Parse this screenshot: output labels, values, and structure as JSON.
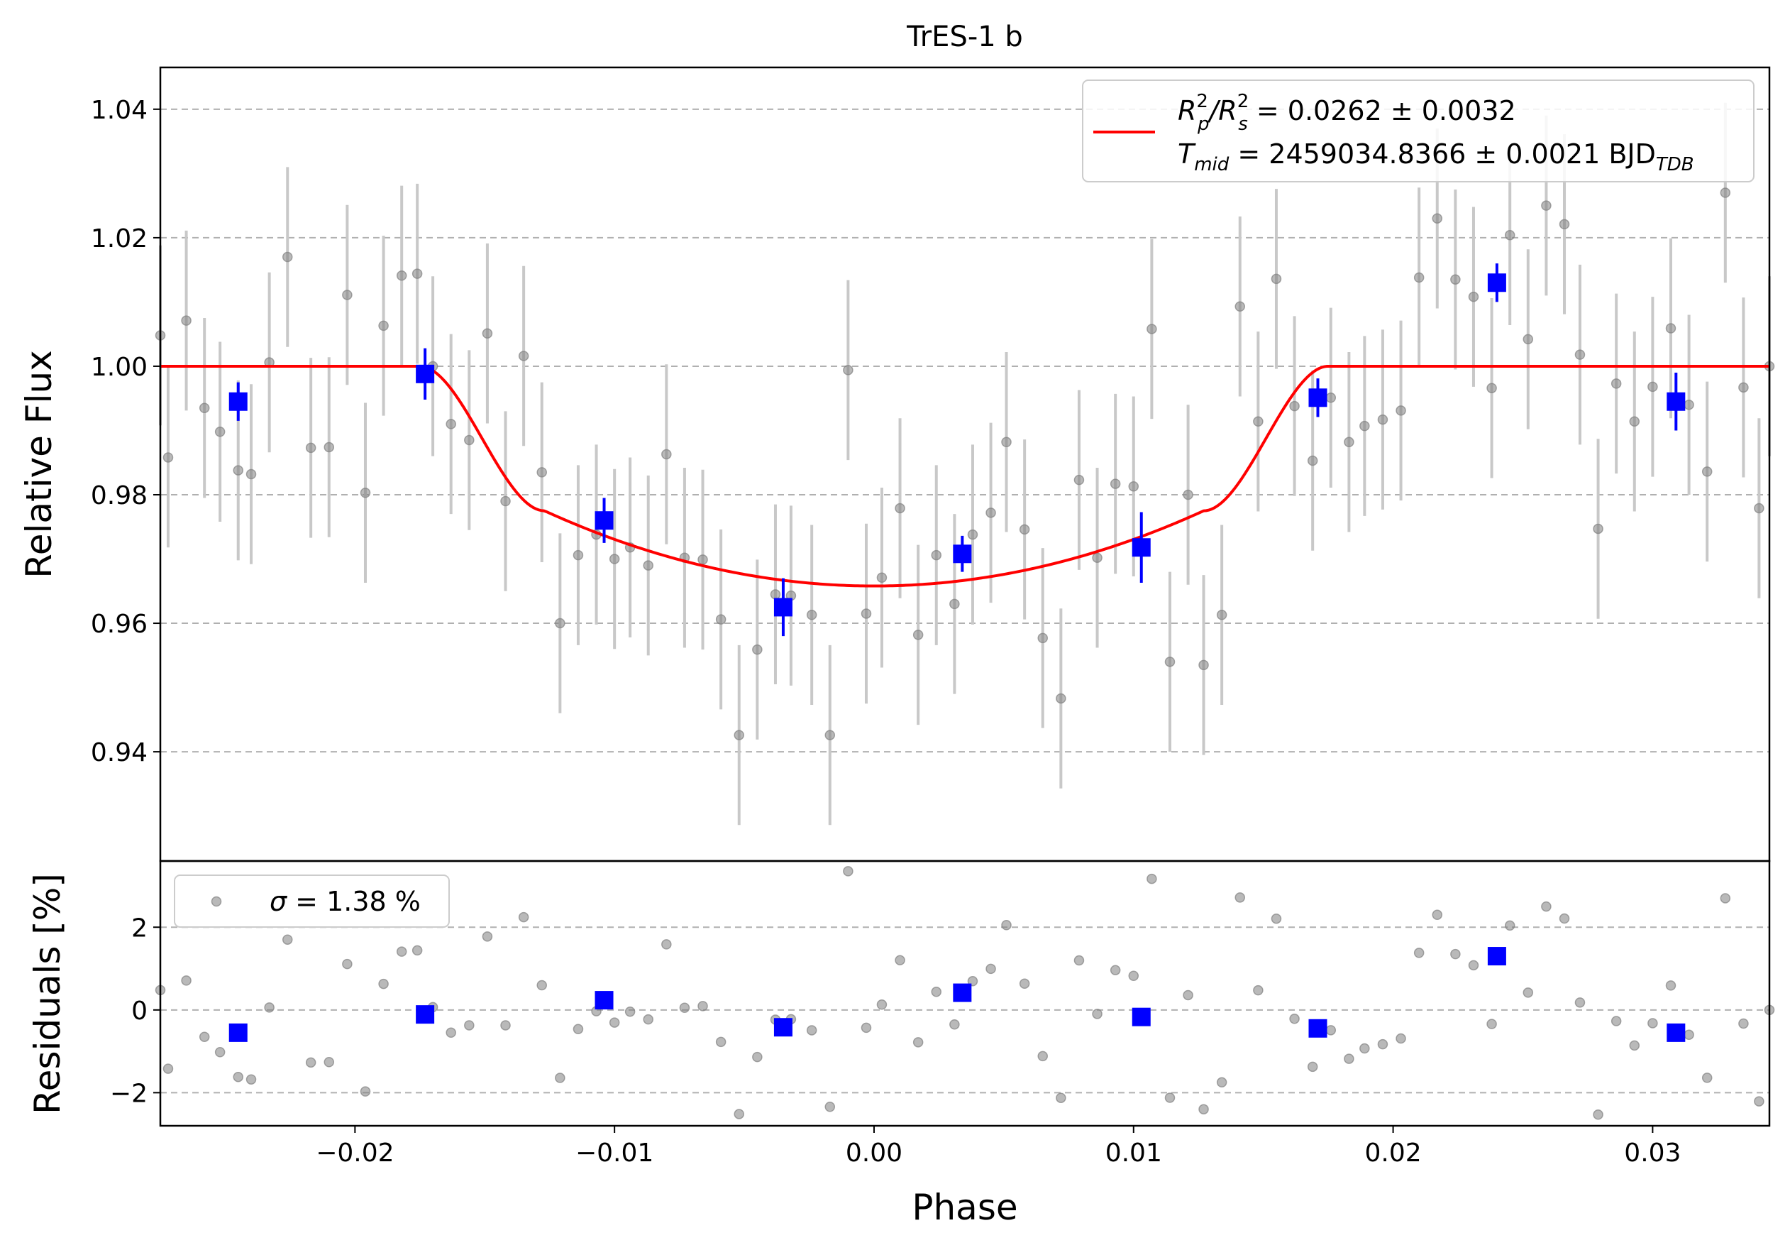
{
  "title": "TrES-1 b",
  "colors": {
    "raw_points": "#808080",
    "raw_errorbars": "#c8c8c8",
    "binned": "#0000ff",
    "model": "#ff0000",
    "grid": "#b0b0b0"
  },
  "chart_data": [
    {
      "type": "scatter",
      "panel": "light-curve",
      "title": "TrES-1 b",
      "xlabel": "",
      "ylabel": "Relative Flux",
      "xlim": [
        -0.0275,
        0.0345
      ],
      "ylim": [
        0.923,
        1.0465
      ],
      "yticks": [
        0.94,
        0.96,
        0.98,
        1.0,
        1.02,
        1.04
      ],
      "ytick_labels": [
        "0.94",
        "0.96",
        "0.98",
        "1.00",
        "1.02",
        "1.04"
      ],
      "grid": "horizontal dashed",
      "legend": {
        "placement": "top-right",
        "line1": {
          "base": "R",
          "sub1": "p",
          "sup1": "2",
          "slash": "/R",
          "sub2": "s",
          "sup2": "2",
          "rest": " = 0.0262 ± 0.0032"
        },
        "line2": {
          "base": "T",
          "sub": "mid",
          "rest": " = 2459034.8366 ± 0.0021 BJD",
          "unit_sub": "TDB"
        }
      },
      "raw": {
        "x": [
          -0.0275,
          -0.0272,
          -0.0265,
          -0.0258,
          -0.0252,
          -0.0245,
          -0.024,
          -0.0233,
          -0.0226,
          -0.0217,
          -0.021,
          -0.0203,
          -0.0196,
          -0.0189,
          -0.0182,
          -0.0176,
          -0.017,
          -0.0163,
          -0.0156,
          -0.0149,
          -0.0142,
          -0.0135,
          -0.0128,
          -0.0121,
          -0.0114,
          -0.0107,
          -0.01,
          -0.0094,
          -0.0087,
          -0.008,
          -0.0073,
          -0.0066,
          -0.0059,
          -0.0052,
          -0.0045,
          -0.0038,
          -0.0032,
          -0.0024,
          -0.0017,
          -0.001,
          -0.0003,
          0.0003,
          0.001,
          0.0017,
          0.0024,
          0.0031,
          0.0038,
          0.0045,
          0.0051,
          0.0058,
          0.0065,
          0.0072,
          0.0079,
          0.0086,
          0.0093,
          0.01,
          0.0107,
          0.0114,
          0.0121,
          0.0127,
          0.0134,
          0.0141,
          0.0148,
          0.0155,
          0.0162,
          0.0169,
          0.0176,
          0.0183,
          0.0189,
          0.0196,
          0.0203,
          0.021,
          0.0217,
          0.0224,
          0.0231,
          0.0238,
          0.0245,
          0.0252,
          0.0259,
          0.0266,
          0.0272,
          0.0279,
          0.0286,
          0.0293,
          0.03,
          0.0307,
          0.0314,
          0.0321,
          0.0328,
          0.0335,
          0.0341,
          0.0345
        ],
        "y": [
          1.0048,
          0.9858,
          1.0071,
          0.9935,
          0.9898,
          0.9838,
          0.9832,
          1.0006,
          1.017,
          0.9873,
          0.9874,
          1.0111,
          0.9803,
          1.0063,
          1.0141,
          1.0144,
          1.0,
          0.991,
          0.9885,
          1.0051,
          0.979,
          1.0016,
          0.9835,
          0.96,
          0.9706,
          0.9738,
          0.97,
          0.9718,
          0.969,
          0.9863,
          0.9702,
          0.9699,
          0.9606,
          0.9426,
          0.9559,
          0.9645,
          0.9643,
          0.9613,
          0.9426,
          0.9994,
          0.9615,
          0.9671,
          0.9779,
          0.9582,
          0.9706,
          0.963,
          0.9738,
          0.9772,
          0.9882,
          0.9746,
          0.9577,
          0.9483,
          0.9823,
          0.9702,
          0.9817,
          0.9813,
          1.0058,
          0.954,
          0.98,
          0.9535,
          0.9613,
          1.0093,
          0.9914,
          1.0136,
          0.9938,
          0.9853,
          0.9951,
          0.9882,
          0.9907,
          0.9917,
          0.9931,
          1.0138,
          1.023,
          1.0135,
          1.0108,
          0.9966,
          1.0204,
          1.0042,
          1.025,
          1.0221,
          1.0018,
          0.9747,
          0.9973,
          0.9914,
          0.9968,
          1.0059,
          0.994,
          0.9836,
          1.027,
          0.9967,
          0.9779,
          1.0
        ],
        "err": [
          0.014,
          0.014,
          0.014,
          0.014,
          0.014,
          0.014,
          0.014,
          0.014,
          0.014,
          0.014,
          0.014,
          0.014,
          0.014,
          0.014,
          0.014,
          0.014,
          0.014,
          0.014,
          0.014,
          0.014,
          0.014,
          0.014,
          0.014,
          0.014,
          0.014,
          0.014,
          0.014,
          0.014,
          0.014,
          0.014,
          0.014,
          0.014,
          0.014,
          0.014,
          0.014,
          0.014,
          0.014,
          0.014,
          0.014,
          0.014,
          0.014,
          0.014,
          0.014,
          0.014,
          0.014,
          0.014,
          0.014,
          0.014,
          0.014,
          0.014,
          0.014,
          0.014,
          0.014,
          0.014,
          0.014,
          0.014,
          0.014,
          0.014,
          0.014,
          0.014,
          0.014,
          0.014,
          0.014,
          0.014,
          0.014,
          0.014,
          0.014,
          0.014,
          0.014,
          0.014,
          0.014,
          0.014,
          0.014,
          0.014,
          0.014,
          0.014,
          0.014,
          0.014,
          0.014,
          0.014,
          0.014,
          0.014,
          0.014,
          0.014,
          0.014,
          0.014,
          0.014,
          0.014,
          0.014,
          0.014,
          0.014,
          0.014
        ]
      },
      "binned": {
        "x": [
          -0.0245,
          -0.0173,
          -0.0104,
          -0.0035,
          0.0034,
          0.0103,
          0.0171,
          0.024,
          0.0309
        ],
        "y": [
          0.9945,
          0.9988,
          0.976,
          0.9625,
          0.9708,
          0.9718,
          0.9951,
          1.013,
          0.9945
        ],
        "err": [
          0.003,
          0.004,
          0.0035,
          0.0045,
          0.0028,
          0.0055,
          0.003,
          0.003,
          0.0045
        ]
      },
      "model": {
        "name": "",
        "params": {
          "rp2_over_rs2": 0.0262,
          "t14_half": 0.0175,
          "t23_half": 0.0127,
          "floor": 0.9658,
          "depth_at_contact": 0.9775
        }
      }
    },
    {
      "type": "scatter",
      "panel": "residuals",
      "xlabel": "Phase",
      "ylabel": "Residuals [%]",
      "xlim": [
        -0.0275,
        0.0345
      ],
      "ylim": [
        -2.8,
        3.6
      ],
      "xticks": [
        -0.02,
        -0.01,
        0.0,
        0.01,
        0.02,
        0.03
      ],
      "xtick_labels": [
        "−0.02",
        "−0.01",
        "0.00",
        "0.01",
        "0.02",
        "0.03"
      ],
      "yticks": [
        -2,
        0,
        2
      ],
      "ytick_labels": [
        "−2",
        "0",
        "2"
      ],
      "grid": "horizontal dashed",
      "legend": {
        "placement": "top-left",
        "symbol": "σ",
        "rest": " = 1.38 %"
      }
    }
  ]
}
